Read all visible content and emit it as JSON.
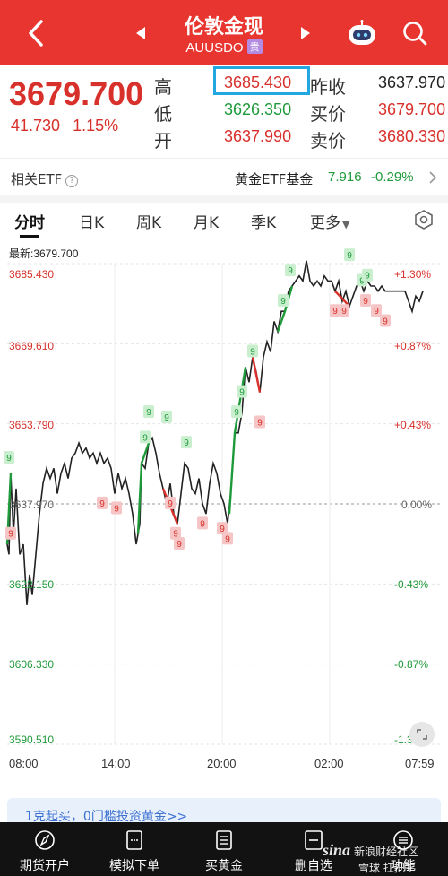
{
  "header": {
    "title": "伦敦金现",
    "subtitle": "AUUSDO",
    "tag": "贵"
  },
  "quote": {
    "price": "3679.700",
    "change": "41.730",
    "change_pct": "1.15%",
    "rows": [
      {
        "label": "高",
        "value": "3685.430",
        "label2": "昨收",
        "value2": "3637.970"
      },
      {
        "label": "低",
        "value": "3626.350",
        "label2": "买价",
        "value2": "3679.700"
      },
      {
        "label": "开",
        "value": "3637.990",
        "label2": "卖价",
        "value2": "3680.330"
      }
    ]
  },
  "etf": {
    "label": "相关ETF",
    "help": "?",
    "fund_name": "黄金ETF基金",
    "fund_value": "7.916",
    "fund_pct": "-0.29%"
  },
  "tabs": [
    {
      "label": "分时",
      "active": true
    },
    {
      "label": "日K"
    },
    {
      "label": "周K"
    },
    {
      "label": "月K"
    },
    {
      "label": "季K"
    },
    {
      "label": "更多"
    }
  ],
  "chart": {
    "latest_label": "最新:3679.700",
    "y_left": [
      "3685.430",
      "3669.610",
      "3653.790",
      "3637.970",
      "3622.150",
      "3606.330",
      "3590.510"
    ],
    "y_right": [
      "+1.30%",
      "+0.87%",
      "+0.43%",
      "0.00%",
      "-0.43%",
      "-0.87%",
      "-1.30%"
    ],
    "x_labels": [
      "08:00",
      "14:00",
      "20:00",
      "02:00",
      "07:59"
    ],
    "marker_label": "9"
  },
  "chart_data": {
    "type": "line",
    "title": "",
    "xlabel": "",
    "ylabel": "",
    "ylim": [
      3590.51,
      3685.43
    ],
    "x": [
      "08:00",
      "10:00",
      "12:00",
      "14:00",
      "16:00",
      "18:00",
      "20:00",
      "22:00",
      "00:00",
      "02:00",
      "04:00",
      "06:00",
      "07:59"
    ],
    "series": [
      {
        "values": [
          3638.0,
          3626.4,
          3650.0,
          3649.0,
          3644.0,
          3640.0,
          3640.0,
          3672.0,
          3685.4,
          3682.0,
          3682.0,
          3680.0,
          3679.7
        ]
      }
    ]
  },
  "promo": {
    "text": "1克起买，0门槛投资黄金>>"
  },
  "bottom_nav": [
    {
      "label": "期货开户",
      "icon": "compass-icon"
    },
    {
      "label": "模拟下单",
      "icon": "document-icon"
    },
    {
      "label": "买黄金",
      "icon": "clipboard-icon"
    },
    {
      "label": "删自选",
      "icon": "minus-square-icon"
    },
    {
      "label": "功能",
      "icon": "menu-icon"
    }
  ],
  "watermark": {
    "brand": "sina",
    "line1": "新浪财经社区",
    "line2": "雪球",
    "line3": "扛把主"
  },
  "colors": {
    "header_bg": "#e8352f",
    "up": "#d8302a",
    "down": "#1f9a3a",
    "highlight": "#22a7e0"
  }
}
